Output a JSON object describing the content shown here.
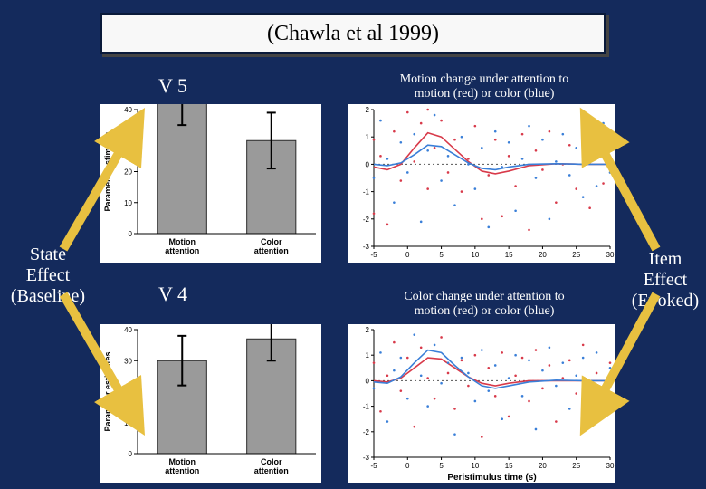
{
  "title": "(Chawla et al 1999)",
  "title_fontsize": 24,
  "background_color": "#142a5c",
  "left_label": {
    "line1": "State",
    "line2": "Effect",
    "line3": "(Baseline)",
    "fontsize": 20
  },
  "right_label": {
    "line1": "Item",
    "line2": "Effect",
    "line3": "(Evoked)",
    "fontsize": 20
  },
  "regions": {
    "v5": {
      "label": "V 5",
      "fontsize": 22
    },
    "v4": {
      "label": "V 4",
      "fontsize": 22
    }
  },
  "captions": {
    "top": {
      "line1": "Motion change under attention to",
      "line2": "motion (red) or color (blue)",
      "fontsize": 14
    },
    "bottom": {
      "line1": "Color change under attention to",
      "line2": "motion (red) or color (blue)",
      "fontsize": 14
    }
  },
  "bar_chart_v5": {
    "type": "bar",
    "categories": [
      "Motion\nattention",
      "Color\nattention"
    ],
    "values": [
      42,
      30
    ],
    "errors": [
      7,
      9
    ],
    "bar_color": "#9a9a9a",
    "bar_border": "#2a2a2a",
    "ylim": [
      0,
      40
    ],
    "yticks": [
      0,
      10,
      20,
      30,
      40
    ],
    "ylabel": "Parameter estimates",
    "label_fontsize": 9,
    "tick_fontsize": 8,
    "bar_width": 0.55,
    "background_color": "#ffffff",
    "axis_color": "#000000"
  },
  "bar_chart_v4": {
    "type": "bar",
    "categories": [
      "Motion\nattention",
      "Color\nattention"
    ],
    "values": [
      30,
      37
    ],
    "errors": [
      8,
      7
    ],
    "bar_color": "#9a9a9a",
    "bar_border": "#2a2a2a",
    "ylim": [
      0,
      40
    ],
    "yticks": [
      0,
      10,
      20,
      30,
      40
    ],
    "ylabel": "Parameter estimates",
    "label_fontsize": 9,
    "tick_fontsize": 8,
    "bar_width": 0.55,
    "background_color": "#ffffff",
    "axis_color": "#000000"
  },
  "scatter_v5": {
    "type": "scatter+line",
    "xlabel": "",
    "xlim": [
      -5,
      30
    ],
    "xticks": [
      -5,
      0,
      5,
      10,
      15,
      20,
      25,
      30
    ],
    "ylim": [
      -3,
      2
    ],
    "yticks": [
      -3,
      -2,
      -1,
      0,
      1,
      2
    ],
    "tick_fontsize": 8,
    "series": {
      "motion": {
        "color": "#d83a4a",
        "line": [
          [
            -5,
            -0.1
          ],
          [
            -3,
            -0.2
          ],
          [
            -1,
            0.0
          ],
          [
            1,
            0.6
          ],
          [
            3,
            1.15
          ],
          [
            5,
            1.0
          ],
          [
            7,
            0.55
          ],
          [
            9,
            0.1
          ],
          [
            11,
            -0.25
          ],
          [
            13,
            -0.35
          ],
          [
            15,
            -0.25
          ],
          [
            18,
            -0.05
          ],
          [
            22,
            0.02
          ],
          [
            26,
            0.0
          ],
          [
            30,
            0.0
          ]
        ],
        "points": [
          [
            -5,
            0.9
          ],
          [
            -5,
            -1.8
          ],
          [
            -4,
            0.3
          ],
          [
            -3,
            -2.2
          ],
          [
            -2,
            1.2
          ],
          [
            -1,
            -0.6
          ],
          [
            0,
            1.9
          ],
          [
            1,
            0.1
          ],
          [
            2,
            1.5
          ],
          [
            3,
            2.0
          ],
          [
            3,
            -0.9
          ],
          [
            4,
            0.6
          ],
          [
            5,
            1.6
          ],
          [
            6,
            -0.3
          ],
          [
            7,
            0.9
          ],
          [
            8,
            -1.0
          ],
          [
            9,
            0.2
          ],
          [
            10,
            1.4
          ],
          [
            11,
            -2.0
          ],
          [
            12,
            -0.4
          ],
          [
            13,
            0.9
          ],
          [
            14,
            -1.9
          ],
          [
            15,
            0.3
          ],
          [
            16,
            -0.8
          ],
          [
            17,
            1.1
          ],
          [
            18,
            -2.4
          ],
          [
            19,
            0.5
          ],
          [
            20,
            -0.2
          ],
          [
            21,
            1.2
          ],
          [
            22,
            -1.4
          ],
          [
            23,
            0.0
          ],
          [
            24,
            0.7
          ],
          [
            25,
            -0.9
          ],
          [
            26,
            1.3
          ],
          [
            27,
            -1.6
          ],
          [
            28,
            0.4
          ],
          [
            29,
            -0.7
          ],
          [
            30,
            0.9
          ]
        ]
      },
      "color": {
        "color": "#3a7fd8",
        "line": [
          [
            -5,
            0.0
          ],
          [
            -3,
            -0.05
          ],
          [
            -1,
            0.05
          ],
          [
            1,
            0.35
          ],
          [
            3,
            0.7
          ],
          [
            5,
            0.65
          ],
          [
            7,
            0.35
          ],
          [
            9,
            0.05
          ],
          [
            11,
            -0.15
          ],
          [
            13,
            -0.2
          ],
          [
            15,
            -0.1
          ],
          [
            18,
            0.0
          ],
          [
            22,
            0.02
          ],
          [
            26,
            0.0
          ],
          [
            30,
            0.0
          ]
        ],
        "points": [
          [
            -5,
            -0.5
          ],
          [
            -4,
            1.6
          ],
          [
            -3,
            0.2
          ],
          [
            -2,
            -1.4
          ],
          [
            -1,
            0.8
          ],
          [
            0,
            -0.3
          ],
          [
            1,
            1.1
          ],
          [
            2,
            -2.1
          ],
          [
            3,
            0.5
          ],
          [
            4,
            1.8
          ],
          [
            5,
            -0.6
          ],
          [
            6,
            0.3
          ],
          [
            7,
            -1.5
          ],
          [
            8,
            1.0
          ],
          [
            9,
            0.0
          ],
          [
            10,
            -0.9
          ],
          [
            11,
            0.6
          ],
          [
            12,
            -2.3
          ],
          [
            13,
            1.2
          ],
          [
            14,
            -0.1
          ],
          [
            15,
            0.8
          ],
          [
            16,
            -1.7
          ],
          [
            17,
            0.2
          ],
          [
            18,
            1.4
          ],
          [
            19,
            -0.5
          ],
          [
            20,
            0.9
          ],
          [
            21,
            -2.0
          ],
          [
            22,
            0.1
          ],
          [
            23,
            1.1
          ],
          [
            24,
            -0.4
          ],
          [
            25,
            0.6
          ],
          [
            26,
            -1.2
          ],
          [
            27,
            0.3
          ],
          [
            28,
            -0.8
          ],
          [
            29,
            1.5
          ],
          [
            30,
            -0.3
          ]
        ]
      }
    },
    "background_color": "#ffffff",
    "axis_color": "#000000"
  },
  "scatter_v4": {
    "type": "scatter+line",
    "xlabel": "Peristimulus time (s)",
    "xlim": [
      -5,
      30
    ],
    "xticks": [
      -5,
      0,
      5,
      10,
      15,
      20,
      25,
      30
    ],
    "ylim": [
      -3,
      2
    ],
    "yticks": [
      -3,
      -2,
      -1,
      0,
      1,
      2
    ],
    "tick_fontsize": 8,
    "label_fontsize": 10,
    "series": {
      "motion": {
        "color": "#d83a4a",
        "line": [
          [
            -5,
            0.0
          ],
          [
            -3,
            -0.05
          ],
          [
            -1,
            0.1
          ],
          [
            1,
            0.5
          ],
          [
            3,
            0.9
          ],
          [
            5,
            0.85
          ],
          [
            7,
            0.5
          ],
          [
            9,
            0.15
          ],
          [
            11,
            -0.1
          ],
          [
            13,
            -0.2
          ],
          [
            15,
            -0.1
          ],
          [
            18,
            0.0
          ],
          [
            22,
            0.0
          ],
          [
            26,
            0.0
          ],
          [
            30,
            0.0
          ]
        ],
        "points": [
          [
            -5,
            0.7
          ],
          [
            -4,
            -1.2
          ],
          [
            -3,
            0.2
          ],
          [
            -2,
            1.5
          ],
          [
            -1,
            -0.4
          ],
          [
            0,
            0.9
          ],
          [
            1,
            -1.8
          ],
          [
            2,
            1.3
          ],
          [
            3,
            0.1
          ],
          [
            4,
            -0.7
          ],
          [
            5,
            1.7
          ],
          [
            6,
            0.3
          ],
          [
            7,
            -1.1
          ],
          [
            8,
            0.8
          ],
          [
            9,
            -0.2
          ],
          [
            10,
            1.0
          ],
          [
            11,
            -2.2
          ],
          [
            12,
            0.5
          ],
          [
            13,
            -0.6
          ],
          [
            14,
            1.1
          ],
          [
            15,
            -1.4
          ],
          [
            16,
            0.2
          ],
          [
            17,
            0.9
          ],
          [
            18,
            -0.8
          ],
          [
            19,
            1.2
          ],
          [
            20,
            -0.3
          ],
          [
            21,
            0.6
          ],
          [
            22,
            -1.6
          ],
          [
            23,
            0.1
          ],
          [
            24,
            0.8
          ],
          [
            25,
            -0.5
          ],
          [
            26,
            1.4
          ],
          [
            27,
            -0.9
          ],
          [
            28,
            0.3
          ],
          [
            29,
            -1.2
          ],
          [
            30,
            0.7
          ]
        ]
      },
      "color": {
        "color": "#3a7fd8",
        "line": [
          [
            -5,
            -0.05
          ],
          [
            -3,
            -0.1
          ],
          [
            -1,
            0.15
          ],
          [
            1,
            0.7
          ],
          [
            3,
            1.2
          ],
          [
            5,
            1.1
          ],
          [
            7,
            0.6
          ],
          [
            9,
            0.15
          ],
          [
            11,
            -0.2
          ],
          [
            13,
            -0.3
          ],
          [
            15,
            -0.2
          ],
          [
            18,
            -0.05
          ],
          [
            22,
            0.02
          ],
          [
            26,
            0.0
          ],
          [
            30,
            0.0
          ]
        ],
        "points": [
          [
            -5,
            -0.3
          ],
          [
            -4,
            1.1
          ],
          [
            -3,
            -1.6
          ],
          [
            -2,
            0.4
          ],
          [
            -1,
            0.9
          ],
          [
            0,
            -0.7
          ],
          [
            1,
            1.8
          ],
          [
            2,
            0.2
          ],
          [
            3,
            -1.0
          ],
          [
            4,
            1.4
          ],
          [
            5,
            -0.1
          ],
          [
            6,
            0.7
          ],
          [
            7,
            -2.1
          ],
          [
            8,
            0.9
          ],
          [
            9,
            0.3
          ],
          [
            10,
            -0.8
          ],
          [
            11,
            1.2
          ],
          [
            12,
            -0.4
          ],
          [
            13,
            0.6
          ],
          [
            14,
            -1.5
          ],
          [
            15,
            0.1
          ],
          [
            16,
            1.0
          ],
          [
            17,
            -0.6
          ],
          [
            18,
            0.8
          ],
          [
            19,
            -1.9
          ],
          [
            20,
            0.4
          ],
          [
            21,
            1.3
          ],
          [
            22,
            -0.2
          ],
          [
            23,
            0.7
          ],
          [
            24,
            -1.1
          ],
          [
            25,
            0.2
          ],
          [
            26,
            0.9
          ],
          [
            27,
            -0.7
          ],
          [
            28,
            1.1
          ],
          [
            29,
            -0.4
          ],
          [
            30,
            0.5
          ]
        ]
      }
    },
    "background_color": "#ffffff",
    "axis_color": "#000000"
  },
  "arrows": {
    "color": "#e8c040",
    "width": 10
  }
}
